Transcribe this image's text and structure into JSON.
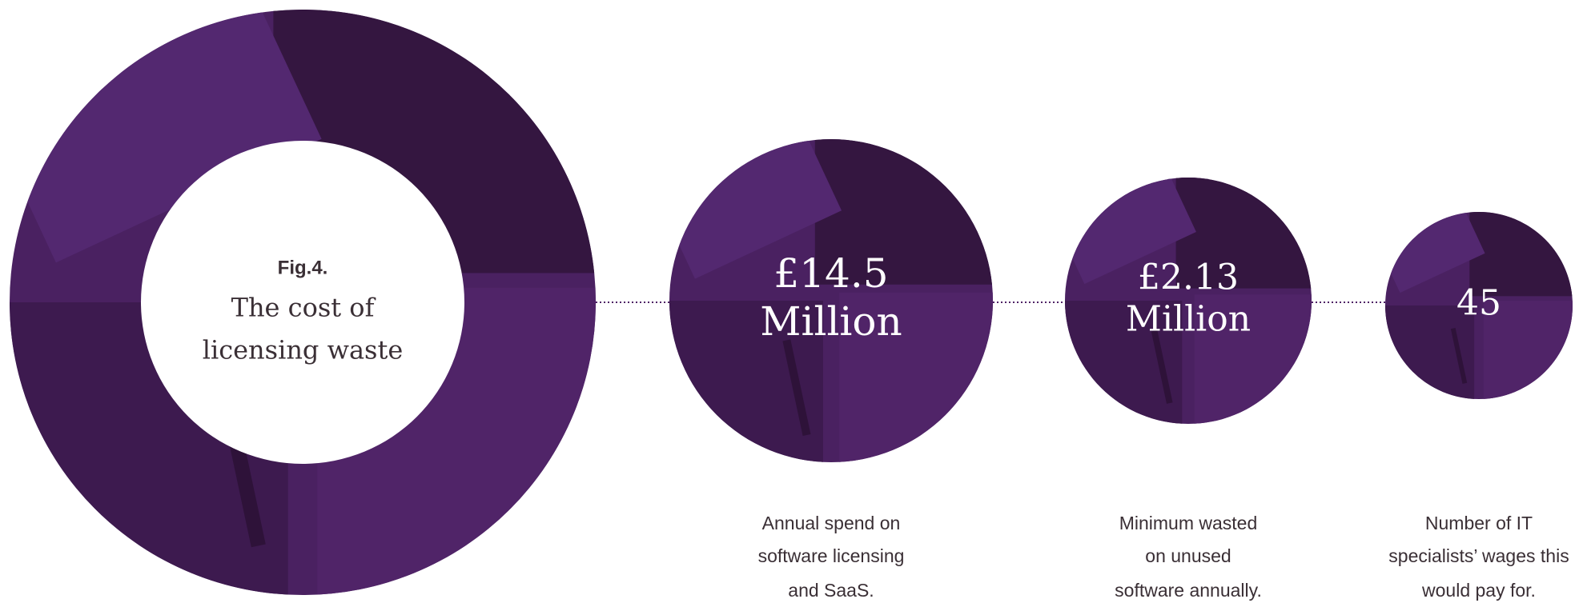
{
  "figure": {
    "label": "Fig.4.",
    "title": [
      "The cost of",
      "licensing waste"
    ]
  },
  "stats": [
    {
      "value": [
        "£14.5",
        "Million"
      ],
      "caption": [
        "Annual spend on",
        "software licensing",
        "and SaaS."
      ]
    },
    {
      "value": [
        "£2.13",
        "Million"
      ],
      "caption": [
        "Minimum wasted",
        "on unused",
        "software annually."
      ]
    },
    {
      "value": [
        "45"
      ],
      "caption": [
        "Number of IT",
        "specialists’ wages this",
        "would pay for."
      ]
    }
  ]
}
